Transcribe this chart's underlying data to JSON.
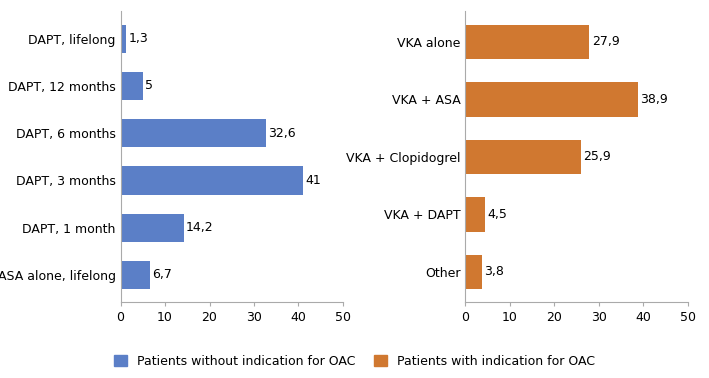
{
  "left_categories": [
    "DAPT, lifelong",
    "DAPT, 12 months",
    "DAPT, 6 months",
    "DAPT, 3 months",
    "DAPT, 1 month",
    "ASA alone, lifelong"
  ],
  "left_values": [
    1.3,
    5,
    32.6,
    41,
    14.2,
    6.7
  ],
  "left_labels": [
    "1,3",
    "5",
    "32,6",
    "41",
    "14,2",
    "6,7"
  ],
  "left_color": "#5B7FC7",
  "left_legend": "Patients without indication for OAC",
  "right_categories": [
    "VKA alone",
    "VKA + ASA",
    "VKA + Clopidogrel",
    "VKA + DAPT",
    "Other"
  ],
  "right_values": [
    27.9,
    38.9,
    25.9,
    4.5,
    3.8
  ],
  "right_labels": [
    "27,9",
    "38,9",
    "25,9",
    "4,5",
    "3,8"
  ],
  "right_color": "#D07830",
  "right_legend": "Patients with indication for OAC",
  "xlim": [
    0,
    50
  ],
  "xticks": [
    0,
    10,
    20,
    30,
    40,
    50
  ],
  "bar_height": 0.6,
  "label_fontsize": 9,
  "tick_fontsize": 9,
  "legend_fontsize": 9,
  "background_color": "#ffffff",
  "figsize": [
    7.09,
    3.78
  ]
}
